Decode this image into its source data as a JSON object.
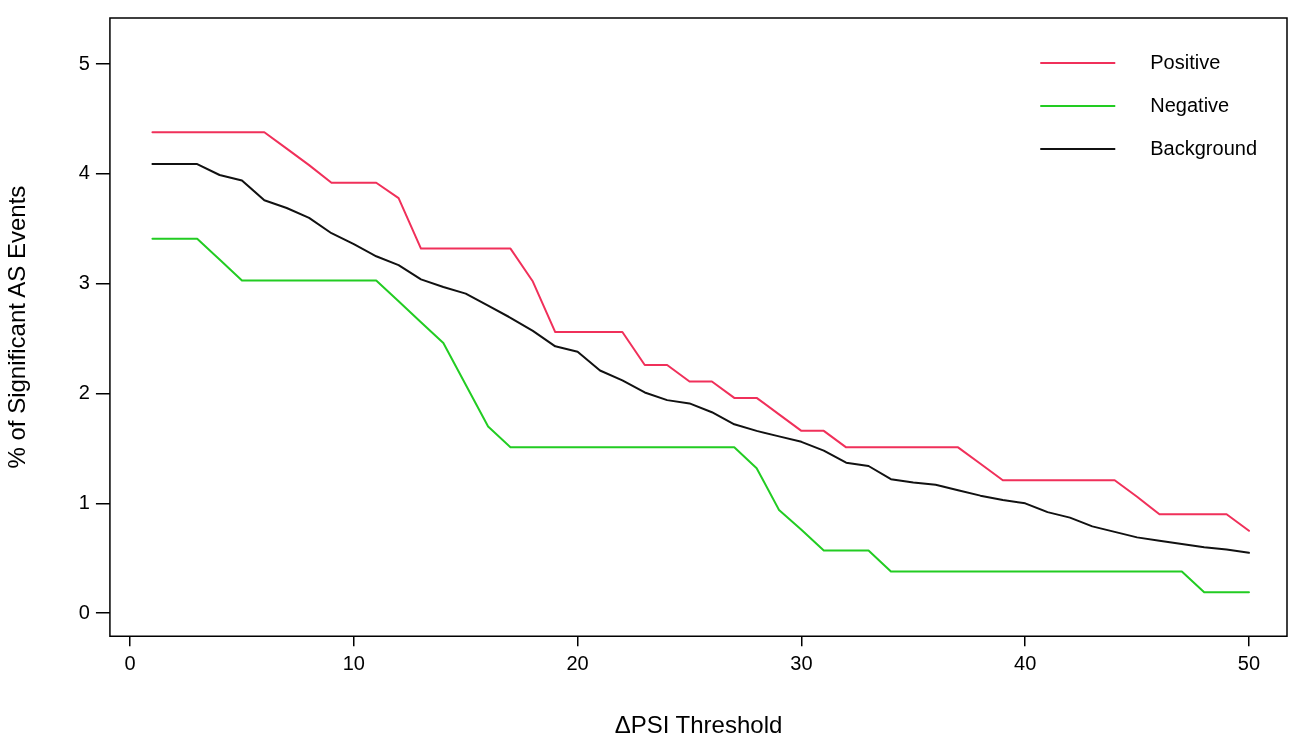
{
  "chart_data": {
    "type": "line",
    "xlabel": "ΔPSI Threshold",
    "ylabel": "% of Significant AS Events",
    "x": [
      1,
      2,
      3,
      4,
      5,
      6,
      7,
      8,
      9,
      10,
      11,
      12,
      13,
      14,
      15,
      16,
      17,
      18,
      19,
      20,
      21,
      22,
      23,
      24,
      25,
      26,
      27,
      28,
      29,
      30,
      31,
      32,
      33,
      34,
      35,
      36,
      37,
      38,
      39,
      40,
      41,
      42,
      43,
      44,
      45,
      46,
      47,
      48,
      49,
      50
    ],
    "series": [
      {
        "name": "Positive",
        "color": "#f0305a",
        "values": [
          4.38,
          4.38,
          4.38,
          4.38,
          4.38,
          4.38,
          4.23,
          4.08,
          3.92,
          3.92,
          3.92,
          3.78,
          3.32,
          3.32,
          3.32,
          3.32,
          3.32,
          3.02,
          2.56,
          2.56,
          2.56,
          2.56,
          2.26,
          2.26,
          2.11,
          2.11,
          1.96,
          1.96,
          1.81,
          1.66,
          1.66,
          1.51,
          1.51,
          1.51,
          1.51,
          1.51,
          1.51,
          1.36,
          1.21,
          1.21,
          1.21,
          1.21,
          1.21,
          1.21,
          1.06,
          0.9,
          0.9,
          0.9,
          0.9,
          0.75
        ]
      },
      {
        "name": "Negative",
        "color": "#22cc22",
        "values": [
          3.41,
          3.41,
          3.41,
          3.22,
          3.03,
          3.03,
          3.03,
          3.03,
          3.03,
          3.03,
          3.03,
          2.84,
          2.65,
          2.46,
          2.08,
          1.7,
          1.51,
          1.51,
          1.51,
          1.51,
          1.51,
          1.51,
          1.51,
          1.51,
          1.51,
          1.51,
          1.51,
          1.32,
          0.94,
          0.76,
          0.57,
          0.57,
          0.57,
          0.38,
          0.38,
          0.38,
          0.38,
          0.38,
          0.38,
          0.38,
          0.38,
          0.38,
          0.38,
          0.38,
          0.38,
          0.38,
          0.38,
          0.19,
          0.19,
          0.19
        ]
      },
      {
        "name": "Background",
        "color": "#111111",
        "values": [
          4.09,
          4.09,
          4.09,
          3.99,
          3.94,
          3.76,
          3.69,
          3.6,
          3.46,
          3.36,
          3.25,
          3.17,
          3.04,
          2.97,
          2.91,
          2.8,
          2.69,
          2.57,
          2.43,
          2.38,
          2.21,
          2.12,
          2.01,
          1.94,
          1.91,
          1.83,
          1.72,
          1.66,
          1.61,
          1.56,
          1.48,
          1.37,
          1.34,
          1.22,
          1.19,
          1.17,
          1.12,
          1.07,
          1.03,
          1.0,
          0.92,
          0.87,
          0.79,
          0.74,
          0.69,
          0.66,
          0.63,
          0.6,
          0.58,
          0.55
        ]
      }
    ],
    "xlim": [
      -0.9,
      51.7
    ],
    "ylim": [
      -0.21,
      5.42
    ],
    "xticks": [
      0,
      10,
      20,
      30,
      40,
      50
    ],
    "yticks": [
      0,
      1,
      2,
      3,
      4,
      5
    ],
    "legend": "top right",
    "grid": false,
    "marker": "none",
    "line_style": "solid"
  }
}
